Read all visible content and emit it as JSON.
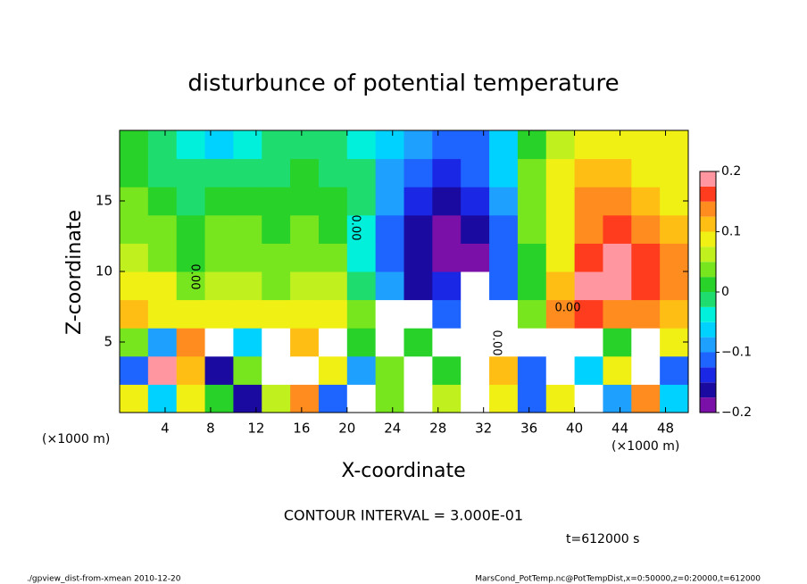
{
  "chart_data": {
    "type": "heatmap",
    "title": "disturbunce of potential temperature",
    "xlabel": "X-coordinate",
    "ylabel": "Z-coordinate",
    "x_unit_left": "(×1000 m)",
    "x_unit_right": "(×1000 m)",
    "xlim": [
      0,
      50
    ],
    "ylim": [
      0,
      20
    ],
    "xticks": [
      4,
      8,
      12,
      16,
      20,
      24,
      28,
      32,
      36,
      40,
      44,
      48
    ],
    "yticks": [
      5,
      10,
      15
    ],
    "x": [
      1.25,
      3.75,
      6.25,
      8.75,
      11.25,
      13.75,
      16.25,
      18.75,
      21.25,
      23.75,
      26.25,
      28.75,
      31.25,
      33.75,
      36.25,
      38.75,
      41.25,
      43.75,
      46.25,
      48.75
    ],
    "y": [
      1,
      3,
      5,
      7,
      9,
      11,
      13,
      15,
      17,
      19
    ],
    "z": [
      [
        0.08,
        -0.05,
        0.1,
        0.02,
        -0.15,
        0.06,
        0.15,
        -0.1,
        -0.3,
        0.05,
        -0.3,
        0.06,
        -0.3,
        0.08,
        -0.12,
        0.1,
        -0.3,
        -0.08,
        0.15,
        -0.05
      ],
      [
        -0.1,
        0.18,
        0.12,
        -0.15,
        0.05,
        0.3,
        -0.3,
        0.1,
        -0.08,
        0.05,
        -0.3,
        0.02,
        -0.3,
        0.12,
        -0.1,
        -0.3,
        -0.06,
        0.1,
        -0.3,
        -0.12
      ],
      [
        0.05,
        -0.08,
        0.15,
        0.3,
        -0.05,
        0.3,
        0.12,
        -0.3,
        0.02,
        -0.3,
        0.01,
        -0.3,
        -0.3,
        -0.3,
        -0.3,
        -0.3,
        -0.3,
        0.02,
        -0.3,
        0.08
      ],
      [
        0.12,
        0.1,
        0.08,
        0.1,
        0.09,
        0.08,
        0.1,
        0.1,
        0.05,
        -0.3,
        -0.3,
        -0.1,
        -0.3,
        -0.3,
        0.05,
        0.15,
        0.16,
        0.15,
        0.14,
        0.12
      ],
      [
        0.09,
        0.08,
        0.03,
        0.07,
        0.06,
        0.04,
        0.06,
        0.06,
        -0.02,
        -0.08,
        -0.15,
        -0.14,
        -0.3,
        -0.12,
        0.01,
        0.12,
        0.2,
        0.19,
        0.17,
        0.15
      ],
      [
        0.06,
        0.05,
        0.02,
        0.05,
        0.04,
        0.03,
        0.04,
        0.03,
        -0.03,
        -0.11,
        -0.17,
        -0.19,
        -0.19,
        -0.12,
        0.02,
        0.1,
        0.17,
        0.18,
        0.16,
        0.14
      ],
      [
        0.04,
        0.03,
        0.01,
        0.04,
        0.03,
        0.02,
        0.03,
        0.02,
        -0.03,
        -0.1,
        -0.16,
        -0.18,
        -0.17,
        -0.1,
        0.03,
        0.1,
        0.15,
        0.16,
        0.14,
        0.12
      ],
      [
        0.03,
        0.02,
        0.0,
        0.02,
        0.02,
        0.01,
        0.02,
        0.01,
        -0.02,
        -0.09,
        -0.14,
        -0.16,
        -0.14,
        -0.08,
        0.03,
        0.08,
        0.13,
        0.14,
        0.12,
        0.1
      ],
      [
        0.02,
        0.0,
        -0.01,
        -0.02,
        -0.01,
        0.0,
        0.01,
        0.0,
        -0.02,
        -0.08,
        -0.12,
        -0.14,
        -0.12,
        -0.06,
        0.04,
        0.08,
        0.11,
        0.12,
        0.1,
        0.09
      ],
      [
        0.01,
        -0.02,
        -0.03,
        -0.05,
        -0.04,
        -0.02,
        -0.02,
        0.0,
        -0.03,
        -0.06,
        -0.09,
        -0.11,
        -0.1,
        -0.06,
        0.02,
        0.06,
        0.1,
        0.09,
        0.1,
        0.09
      ]
    ],
    "levels": [
      -0.2,
      -0.175,
      -0.15,
      -0.125,
      -0.1,
      -0.075,
      -0.05,
      -0.025,
      0,
      0.025,
      0.05,
      0.075,
      0.1,
      0.125,
      0.15,
      0.175,
      0.2
    ],
    "colors": [
      "#7a10a8",
      "#1a0aa0",
      "#1a28e6",
      "#1e64ff",
      "#1ea0ff",
      "#00d2ff",
      "#00f0dc",
      "#1edc6e",
      "#28d228",
      "#78e61e",
      "#c0f01e",
      "#f0f014",
      "#ffbe14",
      "#ff8c1e",
      "#ff3c1e",
      "#ff96a0"
    ],
    "out_of_range_color": "#ffffff",
    "colorbar_ticks": [
      {
        "value": -0.2,
        "label": "−0.2"
      },
      {
        "value": -0.1,
        "label": "−0.1"
      },
      0,
      0.1,
      0.2
    ],
    "contour_labels": [
      "0.00",
      "0.00",
      "0.00",
      "0.00"
    ],
    "contour_interval": "CONTOUR INTERVAL = 3.000E-01",
    "time_label": "t=612000 s",
    "footer_left": "./gpview_dist-from-xmean  2010-12-20",
    "footer_right": "MarsCond_PotTemp.nc@PotTempDist,x=0:50000,z=0:20000,t=612000"
  }
}
